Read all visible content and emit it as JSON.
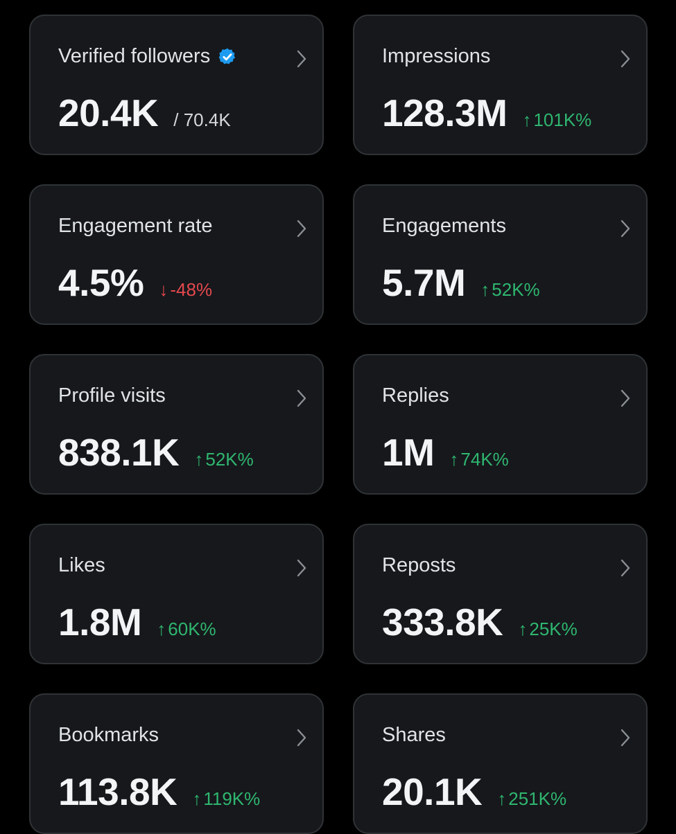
{
  "colors": {
    "background": "#000000",
    "card_background": "#16181c",
    "card_border": "#2f3336",
    "positive": "#2fb66f",
    "negative": "#e5484d",
    "verified_badge": "#1d9bf0"
  },
  "cards": [
    {
      "title": "Verified followers",
      "value": "20.4K",
      "secondary": "/ 70.4K",
      "verified_icon": "verified-badge-icon"
    },
    {
      "title": "Impressions",
      "value": "128.3M",
      "delta": "101K%",
      "arrow": "↑",
      "direction": "up"
    },
    {
      "title": "Engagement rate",
      "value": "4.5%",
      "delta": "-48%",
      "arrow": "↓",
      "direction": "down"
    },
    {
      "title": "Engagements",
      "value": "5.7M",
      "delta": "52K%",
      "arrow": "↑",
      "direction": "up"
    },
    {
      "title": "Profile visits",
      "value": "838.1K",
      "delta": "52K%",
      "arrow": "↑",
      "direction": "up"
    },
    {
      "title": "Replies",
      "value": "1M",
      "delta": "74K%",
      "arrow": "↑",
      "direction": "up"
    },
    {
      "title": "Likes",
      "value": "1.8M",
      "delta": "60K%",
      "arrow": "↑",
      "direction": "up"
    },
    {
      "title": "Reposts",
      "value": "333.8K",
      "delta": "25K%",
      "arrow": "↑",
      "direction": "up"
    },
    {
      "title": "Bookmarks",
      "value": "113.8K",
      "delta": "119K%",
      "arrow": "↑",
      "direction": "up"
    },
    {
      "title": "Shares",
      "value": "20.1K",
      "delta": "251K%",
      "arrow": "↑",
      "direction": "up"
    }
  ]
}
